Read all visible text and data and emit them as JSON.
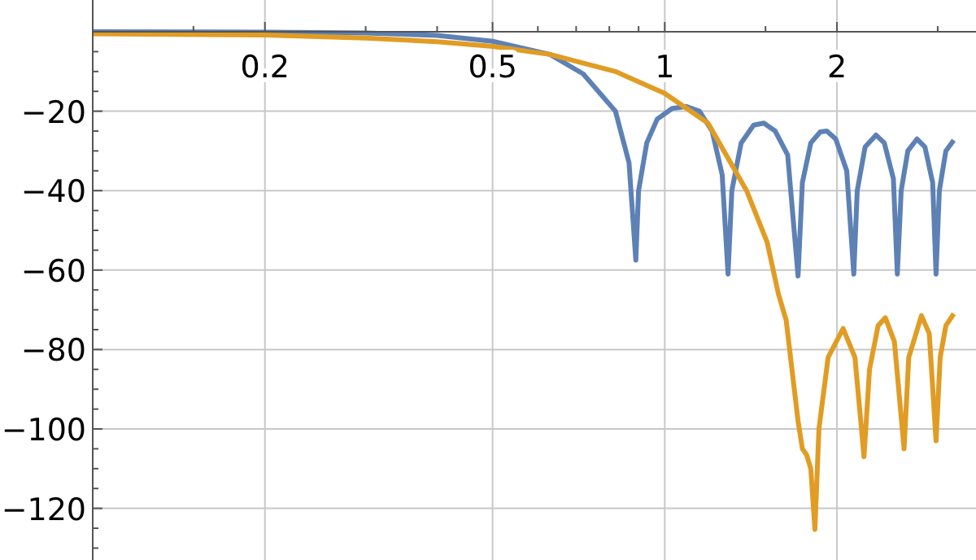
{
  "chart_data": {
    "type": "line",
    "log": "x",
    "grid": true,
    "line_style": "solid",
    "marker": "none",
    "xlim": [
      0.1,
      3.5
    ],
    "ylim": [
      -133,
      8
    ],
    "xticks": [
      {
        "value": 0.15,
        "label": null
      },
      {
        "value": 0.2,
        "label": "0.2"
      },
      {
        "value": 0.3,
        "label": null
      },
      {
        "value": 0.4,
        "label": null
      },
      {
        "value": 0.5,
        "label": "0.5"
      },
      {
        "value": 0.6,
        "label": null
      },
      {
        "value": 0.7,
        "label": null
      },
      {
        "value": 0.8,
        "label": null
      },
      {
        "value": 0.9,
        "label": null
      },
      {
        "value": 1,
        "label": "1"
      },
      {
        "value": 1.5,
        "label": null
      },
      {
        "value": 2,
        "label": "2"
      },
      {
        "value": 3,
        "label": null
      }
    ],
    "yticks": [
      {
        "value": -5,
        "label": null
      },
      {
        "value": -10,
        "label": null
      },
      {
        "value": -15,
        "label": null
      },
      {
        "value": -20,
        "label": "−20"
      },
      {
        "value": -25,
        "label": null
      },
      {
        "value": -30,
        "label": null
      },
      {
        "value": -35,
        "label": null
      },
      {
        "value": -40,
        "label": "−40"
      },
      {
        "value": -45,
        "label": null
      },
      {
        "value": -50,
        "label": null
      },
      {
        "value": -55,
        "label": null
      },
      {
        "value": -60,
        "label": "−60"
      },
      {
        "value": -65,
        "label": null
      },
      {
        "value": -70,
        "label": null
      },
      {
        "value": -75,
        "label": null
      },
      {
        "value": -80,
        "label": "−80"
      },
      {
        "value": -85,
        "label": null
      },
      {
        "value": -90,
        "label": null
      },
      {
        "value": -95,
        "label": null
      },
      {
        "value": -100,
        "label": "−100"
      },
      {
        "value": -105,
        "label": null
      },
      {
        "value": -110,
        "label": null
      },
      {
        "value": -115,
        "label": null
      },
      {
        "value": -120,
        "label": "−120"
      },
      {
        "value": -125,
        "label": null
      },
      {
        "value": -130,
        "label": null
      }
    ],
    "series": [
      {
        "color": "#5e81b5",
        "x": [
          0.1,
          0.2,
          0.3,
          0.4,
          0.5,
          0.63,
          0.72,
          0.82,
          0.866,
          0.89,
          0.9,
          0.93,
          0.97,
          1.03,
          1.09,
          1.15,
          1.21,
          1.26,
          1.29,
          1.31,
          1.36,
          1.43,
          1.49,
          1.56,
          1.64,
          1.71,
          1.74,
          1.8,
          1.87,
          1.92,
          1.99,
          2.08,
          2.14,
          2.17,
          2.24,
          2.34,
          2.42,
          2.51,
          2.55,
          2.59,
          2.66,
          2.76,
          2.85,
          2.94,
          2.98,
          3.02,
          3.1,
          3.2
        ],
        "values": [
          0,
          -0.1,
          -0.3,
          -0.9,
          -2.4,
          -5.7,
          -10.6,
          -20,
          -33,
          -57.5,
          -40,
          -28,
          -22,
          -19.3,
          -18.8,
          -20,
          -25,
          -36,
          -61,
          -40,
          -28,
          -23.5,
          -23,
          -25,
          -31,
          -61.5,
          -38,
          -28,
          -25.2,
          -25,
          -27,
          -35,
          -61,
          -40,
          -29,
          -26,
          -28,
          -37,
          -61,
          -40,
          -30,
          -27,
          -29,
          -38,
          -61,
          -40,
          -30,
          -27.3
        ]
      },
      {
        "color": "#e19c24",
        "x": [
          0.1,
          0.2,
          0.3,
          0.4,
          0.5,
          0.63,
          0.82,
          1,
          1.19,
          1.39,
          1.51,
          1.58,
          1.63,
          1.71,
          1.74,
          1.77,
          1.8,
          1.83,
          1.86,
          1.93,
          2.05,
          2.15,
          2.23,
          2.28,
          2.36,
          2.43,
          2.52,
          2.62,
          2.67,
          2.81,
          2.9,
          2.98,
          3.03,
          3.1,
          3.2
        ],
        "values": [
          -0.5,
          -0.8,
          -1.6,
          -2.5,
          -3.7,
          -5.7,
          -10,
          -15.5,
          -23,
          -40,
          -53,
          -66,
          -72.6,
          -98,
          -105,
          -106.5,
          -110,
          -125.3,
          -100,
          -82,
          -74.7,
          -82,
          -107,
          -85,
          -74,
          -72,
          -78,
          -105,
          -82,
          -71.5,
          -76,
          -103,
          -82,
          -74,
          -71
        ]
      }
    ]
  }
}
